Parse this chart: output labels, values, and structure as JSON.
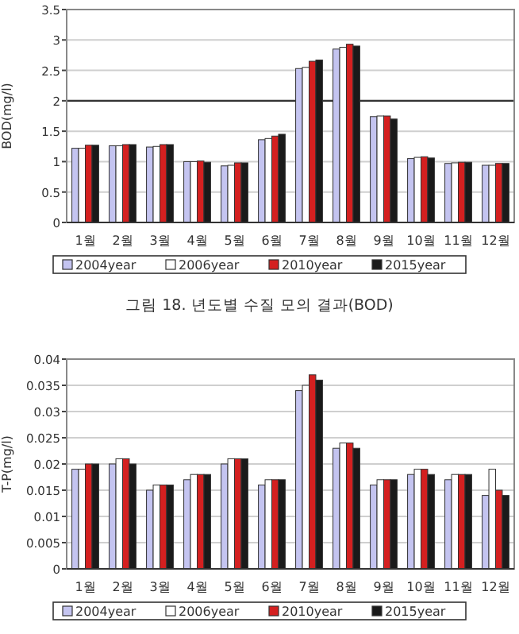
{
  "chart_data": [
    {
      "type": "bar",
      "ylabel": "BOD(mg/l)",
      "categories": [
        "1월",
        "2월",
        "3월",
        "4월",
        "5월",
        "6월",
        "7월",
        "8월",
        "9월",
        "10월",
        "11월",
        "12월"
      ],
      "series": [
        {
          "name": "2004year",
          "color": "#c4c4f0",
          "values": [
            1.22,
            1.26,
            1.24,
            1.0,
            0.93,
            1.36,
            2.53,
            2.85,
            1.74,
            1.05,
            0.97,
            0.94
          ]
        },
        {
          "name": "2006year",
          "color": "#ffffff",
          "values": [
            1.22,
            1.26,
            1.25,
            1.0,
            0.94,
            1.38,
            2.55,
            2.88,
            1.75,
            1.07,
            0.98,
            0.94
          ]
        },
        {
          "name": "2010year",
          "color": "#d42020",
          "values": [
            1.27,
            1.28,
            1.28,
            1.01,
            0.98,
            1.42,
            2.65,
            2.93,
            1.75,
            1.08,
            0.99,
            0.97
          ]
        },
        {
          "name": "2015year",
          "color": "#1a1a1a",
          "values": [
            1.27,
            1.28,
            1.28,
            0.99,
            0.98,
            1.45,
            2.67,
            2.9,
            1.7,
            1.06,
            0.99,
            0.97
          ]
        }
      ],
      "ylim": [
        0,
        3.5
      ],
      "yticks": [
        0,
        0.5,
        1,
        1.5,
        2,
        2.5,
        3,
        3.5
      ],
      "grid": "y",
      "legend": "bottom",
      "ref_lines": [
        {
          "axis": "y",
          "value": 2,
          "color": "#333333"
        }
      ],
      "annotations": [
        "그림 18. 년도별 수질 모의 결과(BOD)"
      ]
    },
    {
      "type": "bar",
      "ylabel": "T-P(mg/l)",
      "categories": [
        "1월",
        "2월",
        "3월",
        "4월",
        "5월",
        "6월",
        "7월",
        "8월",
        "9월",
        "10월",
        "11월",
        "12월"
      ],
      "series": [
        {
          "name": "2004year",
          "color": "#c4c4f0",
          "values": [
            0.019,
            0.02,
            0.015,
            0.017,
            0.02,
            0.016,
            0.034,
            0.023,
            0.016,
            0.018,
            0.017,
            0.014
          ]
        },
        {
          "name": "2006year",
          "color": "#ffffff",
          "values": [
            0.019,
            0.021,
            0.016,
            0.018,
            0.021,
            0.017,
            0.035,
            0.024,
            0.017,
            0.019,
            0.018,
            0.019
          ]
        },
        {
          "name": "2010year",
          "color": "#d42020",
          "values": [
            0.02,
            0.021,
            0.016,
            0.018,
            0.021,
            0.017,
            0.037,
            0.024,
            0.017,
            0.019,
            0.018,
            0.015
          ]
        },
        {
          "name": "2015year",
          "color": "#1a1a1a",
          "values": [
            0.02,
            0.02,
            0.016,
            0.018,
            0.021,
            0.017,
            0.036,
            0.023,
            0.017,
            0.018,
            0.018,
            0.014
          ]
        }
      ],
      "ylim": [
        0,
        0.04
      ],
      "yticks": [
        0,
        0.005,
        0.01,
        0.015,
        0.02,
        0.025,
        0.03,
        0.035,
        0.04
      ],
      "grid": "y",
      "legend": "bottom"
    }
  ]
}
